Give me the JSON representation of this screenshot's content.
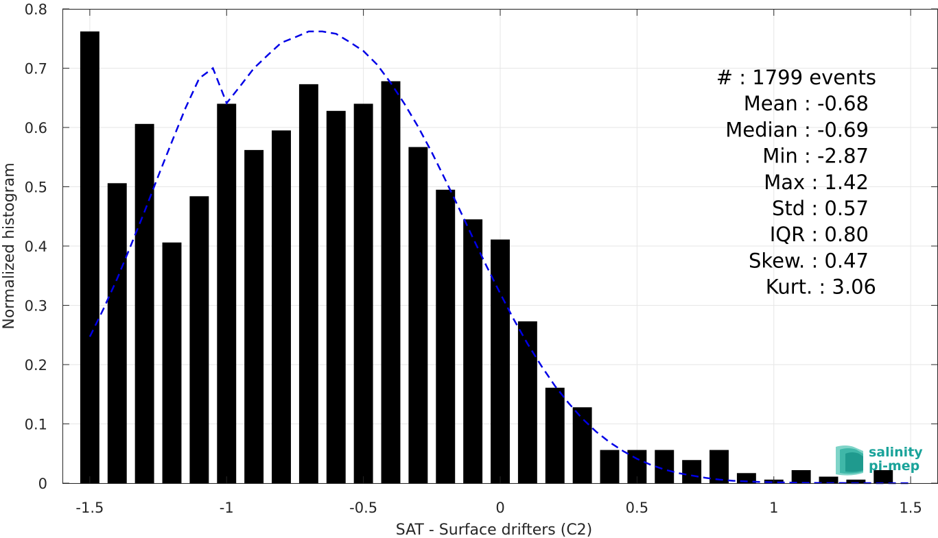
{
  "chart_data": {
    "type": "bar",
    "xlabel": "SAT - Surface drifters (C2)",
    "ylabel": "Normalized histogram",
    "xlim": [
      -1.6,
      1.6
    ],
    "ylim": [
      0,
      0.8
    ],
    "xticks": [
      -1.5,
      -1,
      -0.5,
      0,
      0.5,
      1,
      1.5
    ],
    "xtick_labels": [
      "-1.5",
      "-1",
      "-0.5",
      "0",
      "0.5",
      "1",
      "1.5"
    ],
    "yticks": [
      0,
      0.1,
      0.2,
      0.3,
      0.4,
      0.5,
      0.6,
      0.7,
      0.8
    ],
    "ytick_labels": [
      "0",
      "0.1",
      "0.2",
      "0.3",
      "0.4",
      "0.5",
      "0.6",
      "0.7",
      "0.8"
    ],
    "grid": true,
    "bar_color": "#000000",
    "bar_width": 0.07,
    "bins": [
      -1.5,
      -1.4,
      -1.3,
      -1.2,
      -1.1,
      -1.0,
      -0.9,
      -0.8,
      -0.7,
      -0.6,
      -0.5,
      -0.4,
      -0.3,
      -0.2,
      -0.1,
      0.0,
      0.1,
      0.2,
      0.3,
      0.4,
      0.5,
      0.6,
      0.7,
      0.8,
      0.9,
      1.0,
      1.1,
      1.2,
      1.3,
      1.4
    ],
    "values": [
      0.762,
      0.506,
      0.606,
      0.406,
      0.484,
      0.64,
      0.562,
      0.595,
      0.673,
      0.628,
      0.64,
      0.678,
      0.567,
      0.495,
      0.445,
      0.411,
      0.273,
      0.161,
      0.128,
      0.056,
      0.056,
      0.056,
      0.039,
      0.056,
      0.017,
      0.006,
      0.022,
      0.011,
      0.006,
      0.022
    ],
    "fit_curve": {
      "color": "#0000e6",
      "style": "dashed",
      "x": [
        -1.5,
        -1.45,
        -1.4,
        -1.35,
        -1.3,
        -1.25,
        -1.2,
        -1.15,
        -1.1,
        -1.05,
        -1.0,
        -0.95,
        -0.9,
        -0.85,
        -0.8,
        -0.75,
        -0.7,
        -0.65,
        -0.6,
        -0.55,
        -0.5,
        -0.45,
        -0.4,
        -0.35,
        -0.3,
        -0.25,
        -0.2,
        -0.15,
        -0.1,
        -0.05,
        0.0,
        0.05,
        0.1,
        0.15,
        0.2,
        0.25,
        0.3,
        0.35,
        0.4,
        0.45,
        0.5,
        0.55,
        0.6,
        0.65,
        0.7,
        0.75,
        0.8,
        0.85,
        0.9,
        0.95,
        1.0,
        1.05,
        1.1,
        1.15,
        1.2,
        1.25,
        1.3,
        1.35,
        1.4,
        1.45,
        1.5
      ],
      "y": [
        0.247,
        0.294,
        0.345,
        0.401,
        0.458,
        0.518,
        0.576,
        0.633,
        0.683,
        0.7,
        0.641,
        0.67,
        0.7,
        0.722,
        0.743,
        0.752,
        0.762,
        0.762,
        0.758,
        0.744,
        0.729,
        0.706,
        0.675,
        0.64,
        0.601,
        0.558,
        0.511,
        0.463,
        0.414,
        0.366,
        0.32,
        0.276,
        0.235,
        0.198,
        0.164,
        0.135,
        0.109,
        0.087,
        0.069,
        0.054,
        0.041,
        0.031,
        0.023,
        0.017,
        0.013,
        0.009,
        0.006,
        0.004,
        0.003,
        0.002,
        0.0015,
        0.001,
        0.0007,
        0.0005,
        0.0003,
        0.0002,
        0.0001,
        0.0001,
        0.0,
        0.0,
        0.0
      ]
    },
    "stats": [
      {
        "label": "#  : 1799 events"
      },
      {
        "label": "Mean : -0.68"
      },
      {
        "label": "Median : -0.69"
      },
      {
        "label": "Min : -2.87"
      },
      {
        "label": "Max : 1.42"
      },
      {
        "label": "Std : 0.57"
      },
      {
        "label": "IQR : 0.80"
      },
      {
        "label": "Skew. : 0.47"
      },
      {
        "label": "Kurt. : 3.06"
      }
    ]
  },
  "logo": {
    "line1": "salinity",
    "line2": "pi-mep",
    "color": "#1aa39a"
  }
}
